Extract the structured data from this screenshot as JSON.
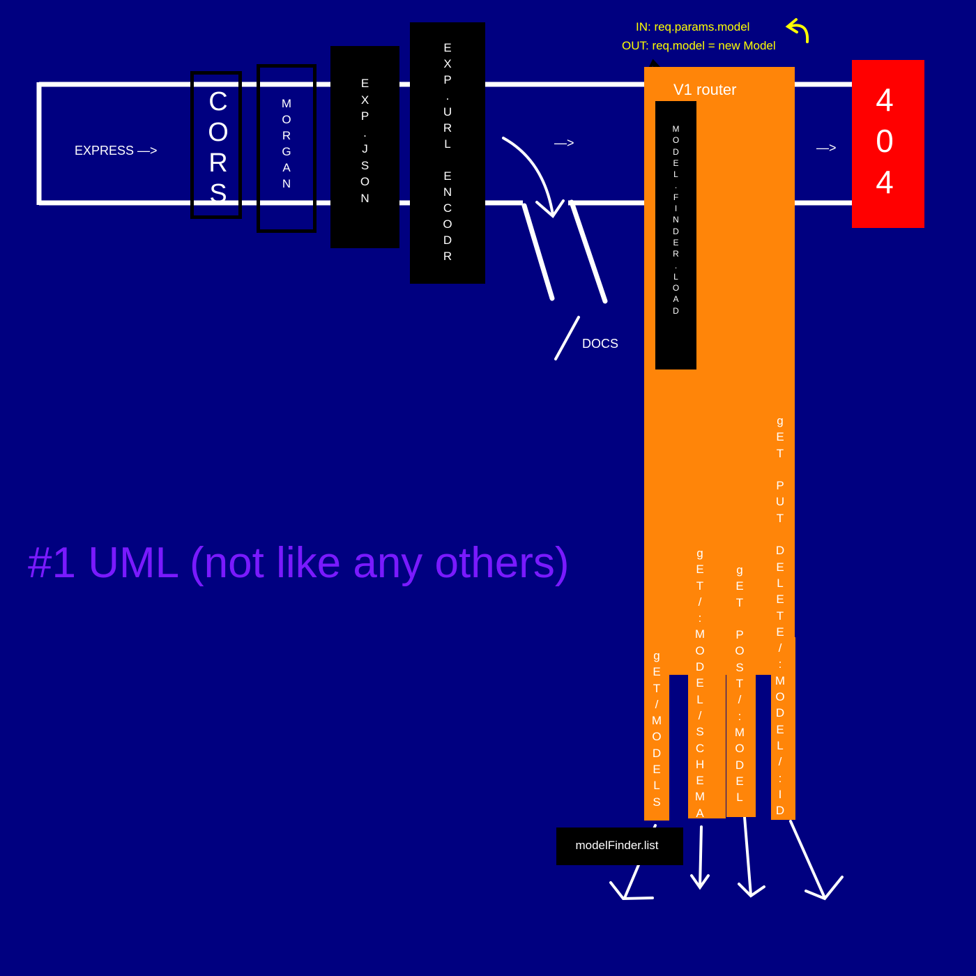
{
  "colors": {
    "background": "#000080",
    "orange": "#ff8509",
    "red": "#ff0000",
    "yellow": "#ffff00",
    "title": "#7a1aff"
  },
  "express_label": "EXPRESS —>",
  "cors_label": "CORS",
  "morgan_label": "MORGAN",
  "exp_json_label": "EXP.JSON",
  "exp_url_label": "EXP.URL ENCODR",
  "arrow_label_1": "—>",
  "arrow_label_2": "—>",
  "docs_label": "DOCS",
  "annotation_in": "IN: req.params.model",
  "annotation_out": "OUT: req.model = new Model",
  "v1_router_label": "V1 router",
  "model_finder_load_label": "MODEL.FINDER.LOAD",
  "not_found_label": "404",
  "routes": {
    "get_models": "gET/MODELS",
    "get_model_schema": "gET/:MODEL/SCHEMA",
    "get_post_model": "gET POST/:MODEL",
    "get_put_delete_id": "gET PUT DELETE/:MODEL/:ID"
  },
  "model_finder_list_label": "modelFinder.list",
  "title": "#1 UML (not like any others)"
}
